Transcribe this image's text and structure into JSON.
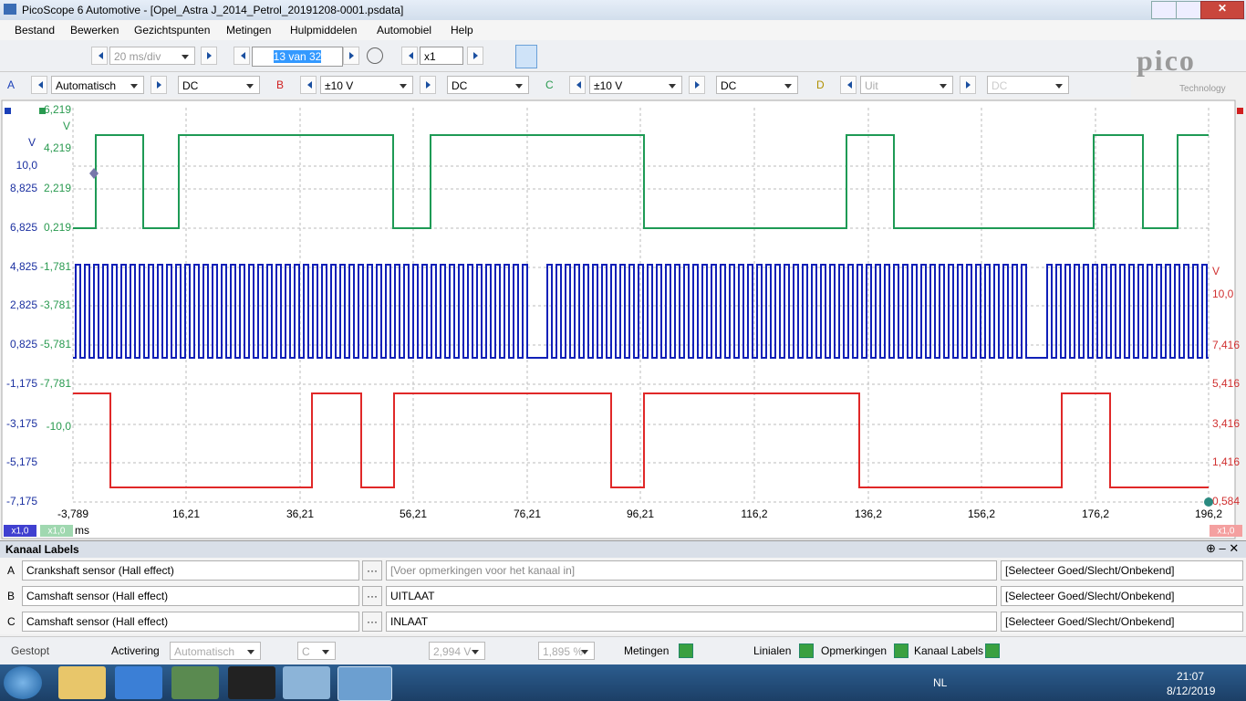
{
  "window": {
    "title": "PicoScope 6 Automotive - [Opel_Astra J_2014_Petrol_20191208-0001.psdata]"
  },
  "menu": [
    "Bestand",
    "Bewerken",
    "Gezichtspunten",
    "Metingen",
    "Hulpmiddelen",
    "Automobiel",
    "Help"
  ],
  "toolbar": {
    "timebase": "20 ms/div",
    "buffer": "13 van 32",
    "zoom": "x1"
  },
  "logo": {
    "name": "pico",
    "sub": "Technology"
  },
  "channels": [
    {
      "letter": "A",
      "range": "Automatisch",
      "coupling": "DC"
    },
    {
      "letter": "B",
      "range": "±10 V",
      "coupling": "DC"
    },
    {
      "letter": "C",
      "range": "±10 V",
      "coupling": "DC"
    },
    {
      "letter": "D",
      "range": "Uit",
      "coupling": "DC"
    }
  ],
  "scope": {
    "axis_a": [
      "V",
      "10,0",
      "8,825",
      "6,825",
      "4,825",
      "2,825",
      "0,825",
      "-1,175",
      "-3,175",
      "-5,175",
      "-7,175"
    ],
    "axis_b": [
      "6,219",
      "V",
      "4,219",
      "2,219",
      "0,219",
      "-1,781",
      "-3,781",
      "-5,781",
      "-7,781",
      "-10,0"
    ],
    "axis_c": [
      "V",
      "10,0",
      "7,416",
      "5,416",
      "3,416",
      "1,416",
      "0,584"
    ],
    "time_ticks": [
      "-3,789",
      "16,21",
      "36,21",
      "56,21",
      "76,21",
      "96,21",
      "116,2",
      "136,2",
      "156,2",
      "176,2",
      "196,2"
    ],
    "time_unit": "ms",
    "zoom_badges": [
      "x1,0",
      "x1,0",
      "x1,0"
    ]
  },
  "channel_labels": {
    "title": "Kanaal Labels",
    "more": "···",
    "rows": [
      {
        "channel": "A",
        "sensor": "Crankshaft sensor (Hall effect)",
        "note": "[Voer opmerkingen voor het kanaal in]",
        "status": "[Selecteer Goed/Slecht/Onbekend]"
      },
      {
        "channel": "B",
        "sensor": "Camshaft sensor (Hall effect)",
        "note": "UITLAAT",
        "status": "[Selecteer Goed/Slecht/Onbekend]"
      },
      {
        "channel": "C",
        "sensor": "Camshaft sensor (Hall effect)",
        "note": "INLAAT",
        "status": "[Selecteer Goed/Slecht/Onbekend]"
      }
    ]
  },
  "statusbar": {
    "state": "Gestopt",
    "trigger": "Activering",
    "mode": "Automatisch",
    "source": "C",
    "level": "2,994 V",
    "pretrigger": "1,895 %",
    "measurements": "Metingen",
    "rulers": "Linialen",
    "notes": "Opmerkingen",
    "labels": "Kanaal Labels"
  },
  "taskbar": {
    "language": "NL",
    "time": "21:07",
    "date": "8/12/2019"
  }
}
